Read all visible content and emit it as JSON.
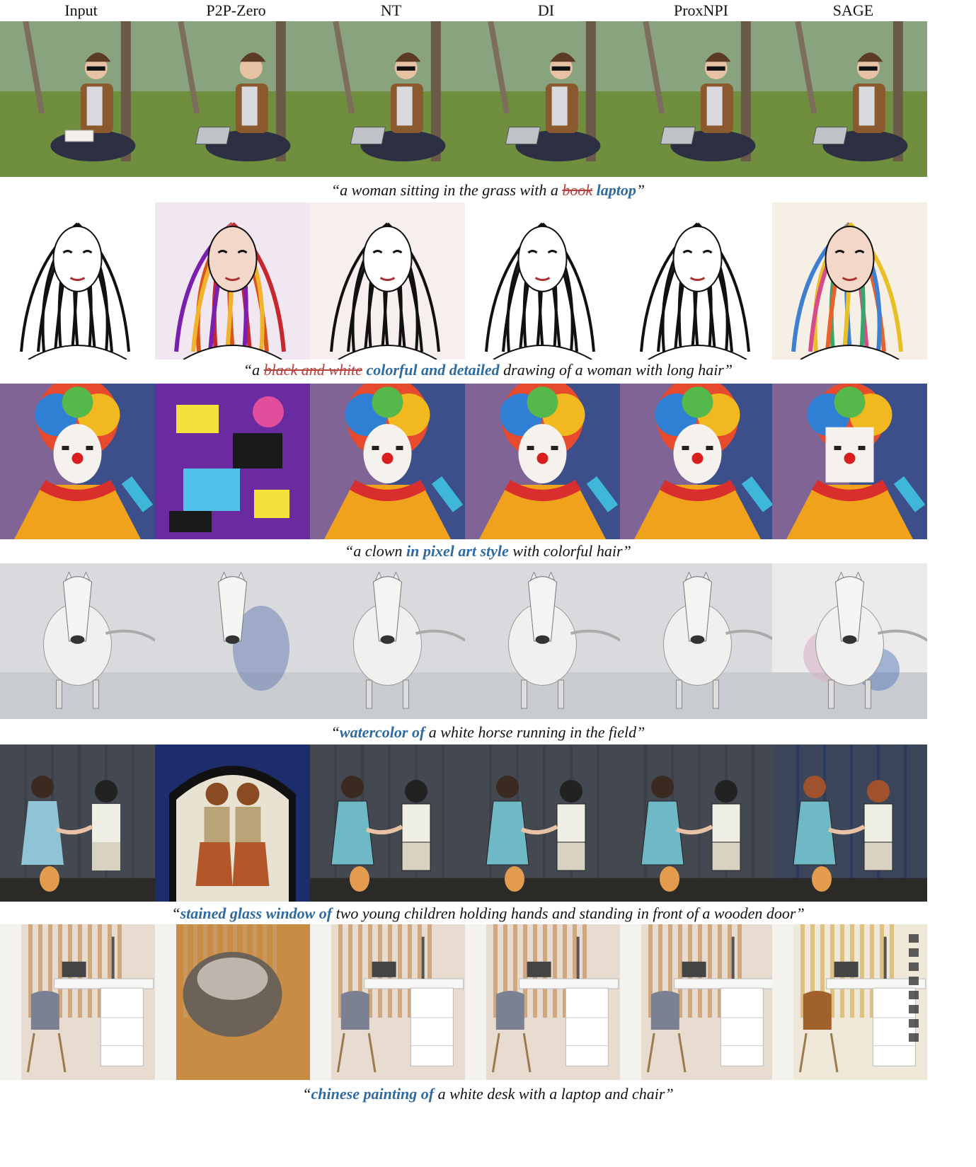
{
  "columns": [
    "Input",
    "P2P-Zero",
    "NT",
    "DI",
    "ProxNPI",
    "SAGE"
  ],
  "rows": [
    {
      "subject": "woman-grass",
      "caption": {
        "open": "“",
        "pre": "a woman sitting in the grass with a ",
        "removed": "book",
        "mid": " ",
        "added": "laptop",
        "post": "",
        "close": "”"
      }
    },
    {
      "subject": "woman-drawing",
      "caption": {
        "open": "“",
        "pre": "a ",
        "removed": "black and white",
        "mid": " ",
        "added": "colorful and detailed",
        "post": " drawing of a woman with long hair",
        "close": "”"
      }
    },
    {
      "subject": "clown",
      "caption": {
        "open": "“",
        "pre": "a clown ",
        "removed": "",
        "mid": "",
        "added": "in pixel art style",
        "post": " with colorful hair",
        "close": "”"
      }
    },
    {
      "subject": "horse",
      "caption": {
        "open": "“",
        "pre": "",
        "removed": "",
        "mid": "",
        "added": "watercolor of",
        "post": " a white horse running in the field",
        "close": "”"
      }
    },
    {
      "subject": "children",
      "caption": {
        "open": "“",
        "pre": "",
        "removed": "",
        "mid": "",
        "added": "stained glass window of",
        "post": " two young children holding hands and standing in front of a wooden door",
        "close": "”"
      }
    },
    {
      "subject": "desk",
      "caption": {
        "open": "“",
        "pre": "",
        "removed": "",
        "mid": "",
        "added": "chinese painting of",
        "post": " a white desk with a laptop and chair",
        "close": "”"
      }
    }
  ],
  "colors": {
    "removed_text": "#b5413f",
    "added_text": "#2f6a9e"
  }
}
